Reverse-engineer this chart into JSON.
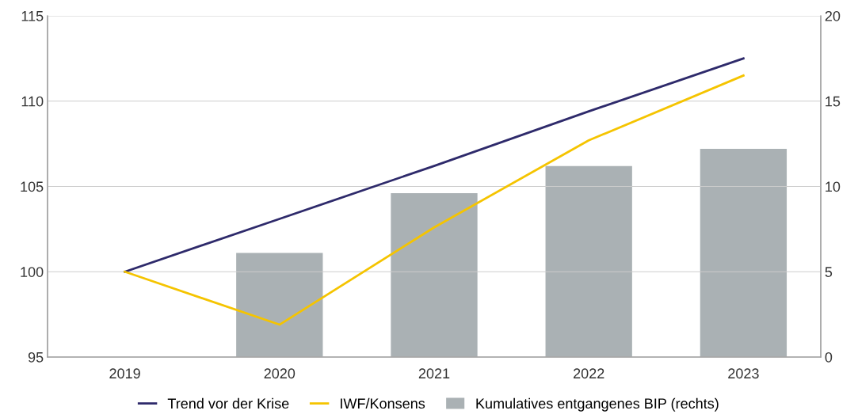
{
  "chart_data": {
    "type": "line",
    "categories": [
      "2019",
      "2020",
      "2021",
      "2022",
      "2023"
    ],
    "series": [
      {
        "name": "Kumulatives entgangenes BIP (rechts)",
        "type": "bar",
        "axis": "y2",
        "color": "#aab1b4",
        "values": [
          null,
          6.1,
          9.6,
          11.2,
          12.2
        ]
      },
      {
        "name": "Trend vor der Krise",
        "color": "#2e2a6b",
        "values": [
          100,
          103.1,
          106.2,
          109.4,
          112.5
        ]
      },
      {
        "name": "IWF/Konsens",
        "color": "#f5c400",
        "values": [
          100,
          96.9,
          102.6,
          107.7,
          111.5
        ]
      }
    ],
    "ylim": [
      95,
      115
    ],
    "yticks": [
      95,
      100,
      105,
      110,
      115
    ],
    "y2lim": [
      0,
      20
    ],
    "y2ticks": [
      0,
      5,
      10,
      15,
      20
    ],
    "grid": "y",
    "legend": "bottom",
    "marker": "none",
    "line_style": "solid"
  }
}
